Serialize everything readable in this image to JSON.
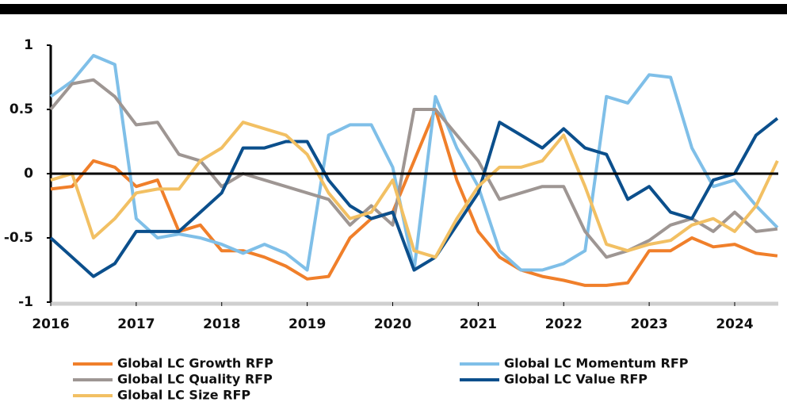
{
  "chart_data": {
    "type": "line",
    "x": [
      2016,
      2016.25,
      2016.5,
      2016.75,
      2017,
      2017.25,
      2017.5,
      2017.75,
      2018,
      2018.25,
      2018.5,
      2018.75,
      2019,
      2019.25,
      2019.5,
      2019.75,
      2020,
      2020.25,
      2020.5,
      2020.75,
      2021,
      2021.25,
      2021.5,
      2021.75,
      2022,
      2022.25,
      2022.5,
      2022.75,
      2023,
      2023.25,
      2023.5,
      2023.75,
      2024,
      2024.25,
      2024.5
    ],
    "xlim": [
      2016,
      2024.51
    ],
    "xticks": [
      2016,
      2017,
      2018,
      2019,
      2020,
      2021,
      2022,
      2023,
      2024
    ],
    "ylim": [
      -1,
      1
    ],
    "yticks": [
      -1,
      -0.5,
      0,
      0.5,
      1
    ],
    "series": [
      {
        "name": "Global LC Growth RFP",
        "color": "#f07f2a",
        "values": [
          -0.12,
          -0.1,
          0.1,
          0.05,
          -0.1,
          -0.05,
          -0.45,
          -0.4,
          -0.6,
          -0.6,
          -0.65,
          -0.72,
          -0.82,
          -0.8,
          -0.5,
          -0.35,
          -0.3,
          0.1,
          0.5,
          -0.05,
          -0.45,
          -0.65,
          -0.75,
          -0.8,
          -0.83,
          -0.87,
          -0.87,
          -0.85,
          -0.6,
          -0.6,
          -0.5,
          -0.57,
          -0.55,
          -0.62,
          -0.64
        ]
      },
      {
        "name": "Global LC Momentum RFP",
        "color": "#7fbfe8",
        "values": [
          0.6,
          0.72,
          0.92,
          0.85,
          -0.35,
          -0.5,
          -0.47,
          -0.5,
          -0.55,
          -0.62,
          -0.55,
          -0.62,
          -0.75,
          0.3,
          0.38,
          0.38,
          0.05,
          -0.75,
          0.6,
          0.2,
          -0.1,
          -0.6,
          -0.75,
          -0.75,
          -0.7,
          -0.6,
          0.6,
          0.55,
          0.77,
          0.75,
          0.2,
          -0.1,
          -0.05,
          -0.25,
          -0.42
        ]
      },
      {
        "name": "Global LC Quality RFP",
        "color": "#9e9693",
        "values": [
          0.5,
          0.7,
          0.73,
          0.6,
          0.38,
          0.4,
          0.15,
          0.1,
          -0.1,
          0.0,
          -0.05,
          -0.1,
          -0.15,
          -0.2,
          -0.4,
          -0.25,
          -0.4,
          0.5,
          0.5,
          0.3,
          0.1,
          -0.2,
          -0.15,
          -0.1,
          -0.1,
          -0.45,
          -0.65,
          -0.6,
          -0.52,
          -0.4,
          -0.35,
          -0.45,
          -0.3,
          -0.45,
          -0.43
        ]
      },
      {
        "name": "Global LC Value RFP",
        "color": "#0b4f8c",
        "values": [
          -0.5,
          -0.65,
          -0.8,
          -0.7,
          -0.45,
          -0.45,
          -0.45,
          -0.3,
          -0.15,
          0.2,
          0.2,
          0.25,
          0.25,
          -0.05,
          -0.25,
          -0.35,
          -0.3,
          -0.75,
          -0.65,
          -0.4,
          -0.15,
          0.4,
          0.3,
          0.2,
          0.35,
          0.2,
          0.15,
          -0.2,
          -0.1,
          -0.3,
          -0.35,
          -0.05,
          0.0,
          0.3,
          0.43
        ]
      },
      {
        "name": "Global LC Size RFP",
        "color": "#f2c063",
        "values": [
          -0.05,
          0.0,
          -0.5,
          -0.35,
          -0.15,
          -0.12,
          -0.12,
          0.1,
          0.2,
          0.4,
          0.35,
          0.3,
          0.15,
          -0.15,
          -0.35,
          -0.3,
          -0.05,
          -0.6,
          -0.65,
          -0.35,
          -0.1,
          0.05,
          0.05,
          0.1,
          0.3,
          -0.1,
          -0.55,
          -0.6,
          -0.55,
          -0.52,
          -0.4,
          -0.35,
          -0.45,
          -0.25,
          0.1
        ]
      }
    ]
  }
}
